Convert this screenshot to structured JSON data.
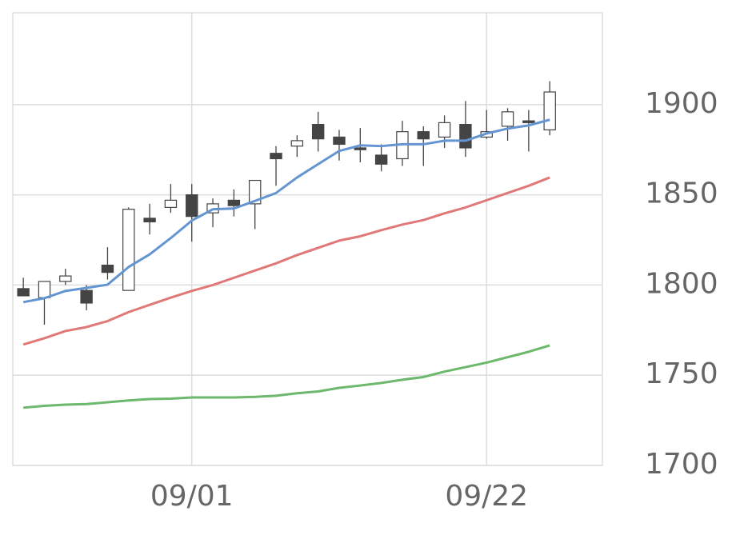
{
  "chart_data": {
    "type": "candlestick",
    "categories": [
      null,
      null,
      null,
      null,
      null,
      null,
      null,
      null,
      "09/01",
      null,
      null,
      null,
      null,
      null,
      null,
      null,
      null,
      null,
      null,
      null,
      null,
      null,
      "09/22",
      null,
      null,
      null
    ],
    "open": [
      1798,
      1793,
      1802,
      1797,
      1811,
      1797,
      1837,
      1843,
      1850,
      1840,
      1847,
      1845,
      1873,
      1877,
      1889,
      1882,
      1876,
      1872,
      1870,
      1885,
      1882,
      1889,
      1882,
      1888,
      1891,
      1886
    ],
    "high": [
      1804,
      1802,
      1809,
      1800,
      1821,
      1843,
      1845,
      1856,
      1856,
      1848,
      1853,
      1858,
      1877,
      1883,
      1896,
      1886,
      1887,
      1878,
      1891,
      1888,
      1894,
      1902,
      1897,
      1898,
      1897,
      1913
    ],
    "low": [
      1794,
      1778,
      1800,
      1786,
      1803,
      1797,
      1828,
      1840,
      1824,
      1832,
      1838,
      1831,
      1855,
      1871,
      1874,
      1869,
      1868,
      1863,
      1866,
      1866,
      1876,
      1871,
      1881,
      1880,
      1874,
      1883
    ],
    "close": [
      1794,
      1802,
      1805,
      1790,
      1807,
      1842,
      1835,
      1847,
      1838,
      1845,
      1844,
      1858,
      1870,
      1880,
      1881,
      1878,
      1875,
      1867,
      1885,
      1881,
      1890,
      1876,
      1885,
      1896,
      1890,
      1907
    ],
    "up_color": "#ffffff",
    "down_color": "#444444",
    "series": [
      {
        "color": "#6495d2",
        "values": [
          1790.5,
          1792.7,
          1796.7,
          1798.4,
          1800.2,
          1810,
          1817,
          1826,
          1835.7,
          1842,
          1842.4,
          1846.6,
          1851,
          1859.6,
          1867,
          1874.3,
          1877.4,
          1877,
          1878,
          1878,
          1880,
          1880,
          1884,
          1886.7,
          1888.5,
          1891.6
        ]
      },
      {
        "color": "#e07878",
        "values": [
          1767,
          1770.5,
          1774.5,
          1776.7,
          1780,
          1785,
          1789,
          1793,
          1796.7,
          1800,
          1804,
          1808,
          1812,
          1816.6,
          1820.6,
          1824.6,
          1827,
          1830.4,
          1833.5,
          1836,
          1839.7,
          1843,
          1847,
          1851,
          1855,
          1859.6
        ]
      },
      {
        "color": "#6cb86c",
        "values": [
          1732,
          1733,
          1733.7,
          1734,
          1735,
          1736,
          1736.8,
          1737,
          1737.7,
          1737.7,
          1737.7,
          1738,
          1738.6,
          1740,
          1741,
          1743,
          1744.3,
          1745.7,
          1747.5,
          1749,
          1752,
          1754.5,
          1757,
          1760,
          1763,
          1766.5
        ]
      }
    ],
    "ylim": [
      1700,
      1950
    ],
    "yticks": [
      1700,
      1750,
      1800,
      1850,
      1900
    ],
    "grid": true
  }
}
